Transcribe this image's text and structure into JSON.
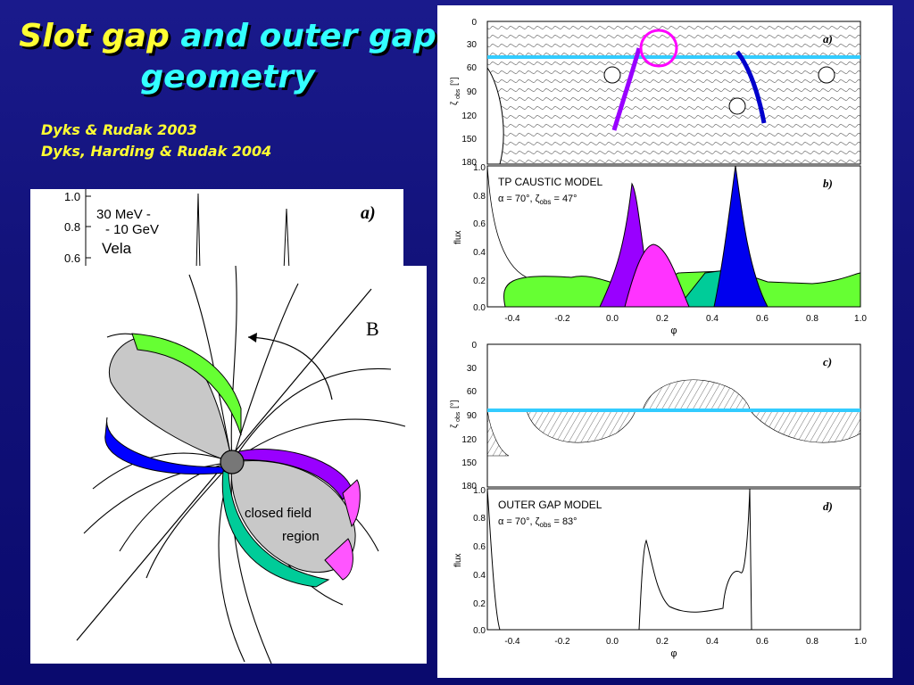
{
  "slide": {
    "title_part1": "Slot gap",
    "title_part2": "and outer gap",
    "title_part3": "geometry",
    "refs": [
      "Dyks & Rudak 2003",
      "Dyks, Harding & Rudak 2004"
    ],
    "colors": {
      "title_yellow": "#ffff33",
      "title_cyan": "#33ffff",
      "background": "#12127a"
    }
  },
  "left_figure": {
    "inset": {
      "panel_label": "a)",
      "energy_line1": "30 MeV -",
      "energy_line2": "- 10 GeV",
      "source": "Vela",
      "yticks": [
        "1.0",
        "0.8",
        "0.6"
      ]
    },
    "diagram": {
      "field_label": "B",
      "region_line1": "closed field",
      "region_line2": "region",
      "colors": {
        "green": "#66ff33",
        "blue": "#0000ff",
        "purple": "#9900ff",
        "magenta": "#ff55ff",
        "teal": "#00cc99",
        "gray": "#c8c8c8"
      }
    }
  },
  "right_figure": {
    "phi_label": "φ",
    "flux_label": "flux",
    "zeta_label": "ζ",
    "zeta_sub": "obs",
    "zeta_unit": "[°]",
    "zeta_ticks": [
      "0",
      "30",
      "60",
      "90",
      "120",
      "150",
      "180"
    ],
    "phase_ticks": [
      "-0.4",
      "-0.2",
      "0.0",
      "0.2",
      "0.4",
      "0.6",
      "0.8",
      "1.0"
    ],
    "flux_ticks": [
      "1.0",
      "0.8",
      "0.6",
      "0.4",
      "0.2",
      "0.0"
    ],
    "panels": {
      "a": {
        "label": "a)"
      },
      "b": {
        "label": "b)",
        "model": "TP CAUSTIC MODEL",
        "params": "α = 70°,  ζ",
        "params_sub": "obs",
        "params_tail": " = 47°"
      },
      "c": {
        "label": "c)"
      },
      "d": {
        "label": "d)",
        "model": "OUTER GAP MODEL",
        "params": "α = 70°,  ζ",
        "params_sub": "obs",
        "params_tail": " = 83°"
      }
    }
  }
}
